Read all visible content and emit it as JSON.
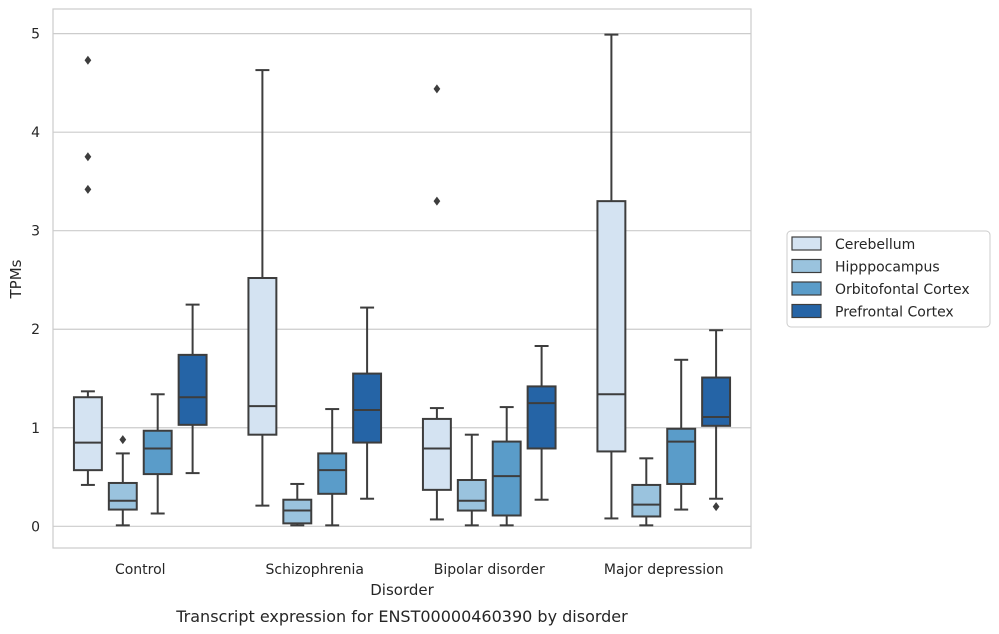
{
  "chart_data": {
    "type": "box",
    "title": "Transcript expression for ENST00000460390 by disorder",
    "xlabel": "Disorder",
    "ylabel": "TPMs",
    "ylim": [
      -0.22,
      5.25
    ],
    "yticks": [
      0,
      1,
      2,
      3,
      4,
      5
    ],
    "categories": [
      "Control",
      "Schizophrenia",
      "Bipolar disorder",
      "Major depression"
    ],
    "grid": true,
    "legend_position": "right",
    "series": [
      {
        "name": "Cerebellum",
        "color": "#d4e3f2",
        "boxes": [
          {
            "whislo": 0.42,
            "q1": 0.57,
            "med": 0.85,
            "q3": 1.31,
            "whishi": 1.37,
            "fliers": [
              3.42,
              3.75,
              4.73
            ]
          },
          {
            "whislo": 0.21,
            "q1": 0.93,
            "med": 1.22,
            "q3": 2.52,
            "whishi": 4.63,
            "fliers": []
          },
          {
            "whislo": 0.07,
            "q1": 0.37,
            "med": 0.79,
            "q3": 1.09,
            "whishi": 1.2,
            "fliers": [
              3.3,
              4.44
            ]
          },
          {
            "whislo": 0.08,
            "q1": 0.76,
            "med": 1.34,
            "q3": 3.3,
            "whishi": 4.99,
            "fliers": []
          }
        ]
      },
      {
        "name": "Hipppocampus",
        "color": "#9ac3de",
        "boxes": [
          {
            "whislo": 0.01,
            "q1": 0.17,
            "med": 0.26,
            "q3": 0.44,
            "whishi": 0.74,
            "fliers": [
              0.88
            ]
          },
          {
            "whislo": 0.01,
            "q1": 0.03,
            "med": 0.16,
            "q3": 0.27,
            "whishi": 0.43,
            "fliers": []
          },
          {
            "whislo": 0.01,
            "q1": 0.16,
            "med": 0.26,
            "q3": 0.47,
            "whishi": 0.93,
            "fliers": []
          },
          {
            "whislo": 0.01,
            "q1": 0.1,
            "med": 0.22,
            "q3": 0.42,
            "whishi": 0.69,
            "fliers": []
          }
        ]
      },
      {
        "name": "Orbitofontal Cortex",
        "color": "#5a9cc9",
        "boxes": [
          {
            "whislo": 0.13,
            "q1": 0.53,
            "med": 0.79,
            "q3": 0.97,
            "whishi": 1.34,
            "fliers": []
          },
          {
            "whislo": 0.01,
            "q1": 0.33,
            "med": 0.57,
            "q3": 0.74,
            "whishi": 1.19,
            "fliers": []
          },
          {
            "whislo": 0.01,
            "q1": 0.11,
            "med": 0.51,
            "q3": 0.86,
            "whishi": 1.21,
            "fliers": []
          },
          {
            "whislo": 0.17,
            "q1": 0.43,
            "med": 0.86,
            "q3": 0.99,
            "whishi": 1.69,
            "fliers": []
          }
        ]
      },
      {
        "name": "Prefrontal Cortex",
        "color": "#2564a6",
        "boxes": [
          {
            "whislo": 0.54,
            "q1": 1.03,
            "med": 1.31,
            "q3": 1.74,
            "whishi": 2.25,
            "fliers": []
          },
          {
            "whislo": 0.28,
            "q1": 0.85,
            "med": 1.18,
            "q3": 1.55,
            "whishi": 2.22,
            "fliers": []
          },
          {
            "whislo": 0.27,
            "q1": 0.79,
            "med": 1.25,
            "q3": 1.42,
            "whishi": 1.83,
            "fliers": []
          },
          {
            "whislo": 0.28,
            "q1": 1.02,
            "med": 1.11,
            "q3": 1.51,
            "whishi": 1.99,
            "fliers": [
              0.2
            ]
          }
        ]
      }
    ]
  },
  "colors": {
    "grid": "#cccccc",
    "frame": "#cccccc",
    "lines": "#3d3d3d",
    "text": "#262626"
  }
}
